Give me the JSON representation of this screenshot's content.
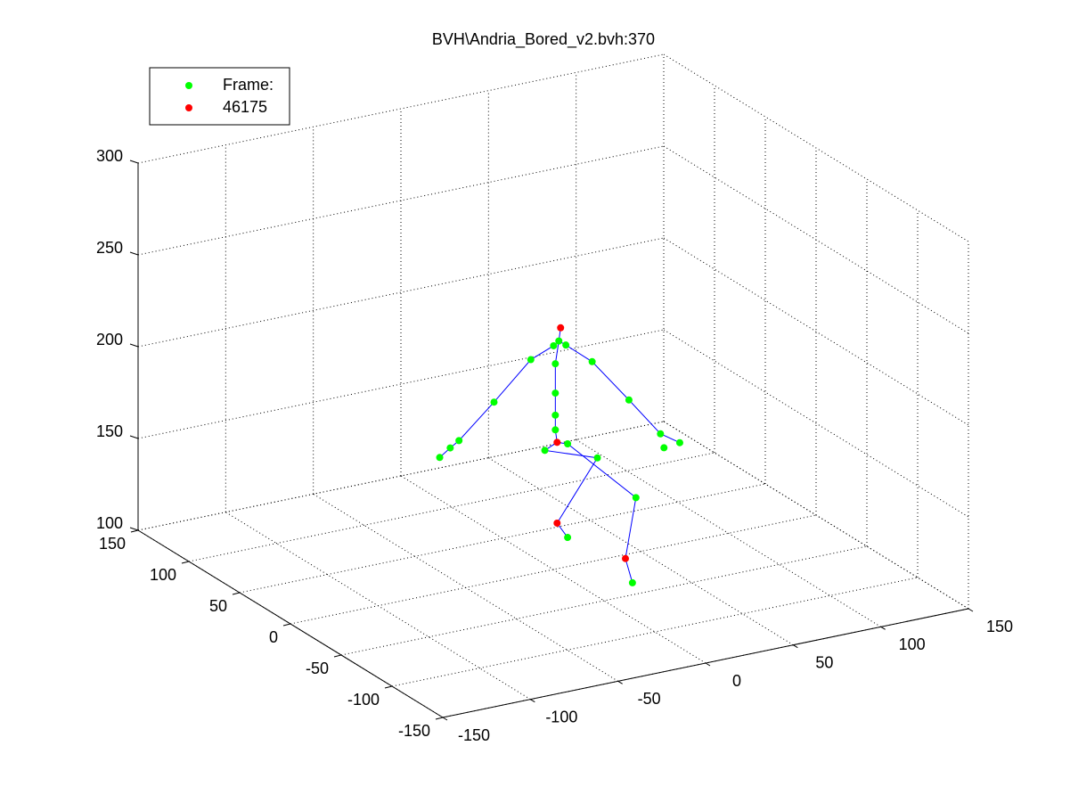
{
  "chart_data": {
    "type": "scatter3d",
    "title": "BVH\\Andria_Bored_v2.bvh:370",
    "xlim": [
      -150,
      150
    ],
    "ylim": [
      -150,
      150
    ],
    "zlim": [
      100,
      300
    ],
    "xticks": [
      -150,
      -100,
      -50,
      0,
      50,
      100,
      150
    ],
    "yticks": [
      -150,
      -100,
      -50,
      0,
      50,
      100,
      150
    ],
    "zticks": [
      100,
      150,
      200,
      250,
      300
    ],
    "grid": true,
    "legend": "upper-left",
    "series": [
      {
        "name": "Frame:",
        "color": "#00ff00",
        "x": [
          -22,
          -22,
          -22,
          -22,
          -20,
          -23,
          -36,
          -57,
          -77,
          -82,
          -88,
          -16,
          -1,
          20,
          38,
          40,
          49,
          -28,
          -15,
          2,
          24,
          -15,
          22
        ],
        "y": [
          -40,
          -40,
          -40,
          -40,
          -40,
          -40,
          -40,
          -40,
          -40,
          -40,
          -40,
          -40,
          -40,
          -40,
          -40,
          -40,
          -40,
          -40,
          -40,
          -40,
          -40,
          -40,
          -40
        ],
        "z": [
          194,
          202,
          214,
          230,
          242,
          240,
          235,
          216,
          199,
          196,
          192,
          239,
          227,
          202,
          180,
          172,
          173,
          184,
          185,
          174,
          148,
          134,
          102
        ]
      },
      {
        "name": "46175",
        "color": "#ff0000",
        "x": [
          -19,
          -21,
          -21,
          18
        ],
        "y": [
          -40,
          -40,
          -40,
          -40
        ],
        "z": [
          249,
          187,
          143,
          116
        ]
      }
    ],
    "lines": {
      "color": "#0000ff",
      "x": [
        -21,
        -22,
        -22,
        -22,
        -22,
        -20,
        -19,
        null,
        -20,
        -23,
        -36,
        -57,
        -77,
        -82,
        -88,
        null,
        -20,
        -16,
        -1,
        20,
        38,
        49,
        null,
        -21,
        -28,
        2,
        -21,
        -15,
        null,
        -21,
        -15,
        24,
        18,
        22
      ],
      "y": [
        -40,
        -40,
        -40,
        -40,
        -40,
        -40,
        -40,
        null,
        -40,
        -40,
        -40,
        -40,
        -40,
        -40,
        -40,
        null,
        -40,
        -40,
        -40,
        -40,
        -40,
        -40,
        null,
        -40,
        -40,
        -40,
        -40,
        -40,
        null,
        -40,
        -40,
        -40,
        -40,
        -40
      ],
      "z": [
        187,
        194,
        202,
        214,
        230,
        242,
        249,
        null,
        242,
        240,
        235,
        216,
        199,
        196,
        192,
        null,
        242,
        239,
        227,
        202,
        180,
        173,
        null,
        187,
        184,
        174,
        143,
        134,
        null,
        187,
        185,
        148,
        116,
        102
      ]
    }
  }
}
